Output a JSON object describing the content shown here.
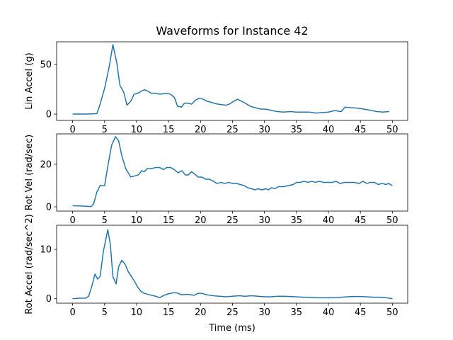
{
  "chart_data": [
    {
      "type": "line",
      "title": "Waveforms for Instance 42",
      "ylabel": "Lin Accel (g)",
      "xlim": [
        -2.5,
        52.4
      ],
      "ylim": [
        -6.4,
        72.9
      ],
      "xticks": [
        0,
        5,
        10,
        15,
        20,
        25,
        30,
        35,
        40,
        45,
        50
      ],
      "yticks": [
        0,
        50
      ],
      "series": [
        {
          "color": "#1f77b4",
          "x": [
            0,
            1,
            2,
            3,
            3.8,
            4.3,
            5,
            5.7,
            6.3,
            6.9,
            7.4,
            8,
            8.5,
            9.1,
            9.6,
            10.2,
            10.7,
            11.2,
            11.8,
            12.3,
            13,
            13.6,
            14.2,
            14.8,
            15.3,
            15.9,
            16.4,
            17,
            17.5,
            18,
            18.6,
            19.2,
            19.8,
            20.4,
            21,
            21.6,
            22.1,
            22.7,
            23.3,
            24,
            24.5,
            25.2,
            25.8,
            26.4,
            27,
            27.6,
            28.2,
            28.8,
            29.4,
            30,
            30.6,
            31.2,
            32,
            33,
            34,
            35,
            36,
            37,
            38,
            39,
            40,
            41,
            42,
            42.6,
            43.5,
            44.5,
            45.5,
            46.5,
            47.5,
            48.5,
            49.5
          ],
          "values": [
            0,
            0,
            0,
            0.2,
            0.5,
            10,
            26,
            47,
            70,
            52,
            29,
            22,
            9,
            13,
            20,
            21,
            23,
            24.5,
            23,
            21,
            21,
            20,
            20.5,
            21,
            20,
            17,
            8,
            7,
            11,
            11,
            10,
            14,
            16,
            15,
            13,
            12,
            11,
            10,
            9.5,
            9,
            10,
            13,
            15,
            13,
            11,
            8.5,
            7,
            6,
            5,
            5,
            4.5,
            3.5,
            2.5,
            2,
            2.5,
            2,
            2,
            2,
            1,
            1.5,
            2,
            3.5,
            2.5,
            7,
            6.5,
            6,
            5,
            4,
            2.5,
            2,
            2.5
          ]
        }
      ]
    },
    {
      "type": "line",
      "ylabel": "Rot Vel (rad/sec)",
      "xlim": [
        -2.5,
        52.4
      ],
      "ylim": [
        -2,
        34.3
      ],
      "xticks": [
        0,
        5,
        10,
        15,
        20,
        25,
        30,
        35,
        40,
        45,
        50
      ],
      "yticks": [
        0,
        20
      ],
      "series": [
        {
          "color": "#1f77b4",
          "x": [
            0,
            1,
            2,
            2.9,
            3.3,
            3.8,
            4.3,
            5,
            5.5,
            6.1,
            6.7,
            7.2,
            7.7,
            8.3,
            9.1,
            9.7,
            10.3,
            10.8,
            11.2,
            11.7,
            12.4,
            13,
            13.6,
            14.2,
            14.7,
            15.3,
            15.9,
            16.5,
            17.1,
            17.6,
            18.1,
            18.6,
            19.1,
            19.6,
            20.2,
            20.8,
            21.4,
            22,
            22.6,
            23.2,
            23.8,
            24.4,
            25,
            25.6,
            26.2,
            26.8,
            27.4,
            28,
            28.5,
            29,
            29.6,
            30.2,
            30.6,
            31.1,
            31.6,
            32.2,
            33,
            33.8,
            34.5,
            35,
            35.6,
            36.2,
            36.8,
            37.4,
            38,
            38.6,
            39.2,
            40,
            40.6,
            41.2,
            41.8,
            42.5,
            43.3,
            44,
            44.8,
            45.4,
            46,
            46.6,
            47.2,
            47.8,
            48.4,
            49,
            49.4,
            50
          ],
          "values": [
            0.5,
            0.4,
            0.3,
            0.1,
            1.5,
            7,
            10,
            10,
            19,
            29,
            33,
            31,
            24,
            18,
            14,
            14.5,
            15,
            17,
            16.5,
            18,
            18,
            18.5,
            18.5,
            17.5,
            18.5,
            18.5,
            17.5,
            16,
            17,
            15,
            15,
            16.5,
            15.5,
            14,
            14,
            13,
            13,
            12,
            11,
            11.5,
            11,
            11.5,
            11,
            11,
            10.5,
            10,
            9,
            8.5,
            8,
            8.5,
            8,
            8.5,
            8,
            9,
            8.5,
            9.5,
            9.5,
            10,
            10.5,
            11.5,
            11.5,
            12,
            11.5,
            12,
            11.5,
            12,
            11.5,
            11.5,
            11.5,
            12,
            11,
            11.5,
            11.5,
            11.5,
            11,
            12,
            11,
            11.5,
            11.5,
            10.5,
            11,
            10.5,
            11,
            10
          ]
        }
      ]
    },
    {
      "type": "line",
      "ylabel": "Rot Accel (rad/sec^2)",
      "xlabel": "Time (ms)",
      "xlim": [
        -2.5,
        52.4
      ],
      "ylim": [
        -0.9,
        14.9
      ],
      "xticks": [
        0,
        5,
        10,
        15,
        20,
        25,
        30,
        35,
        40,
        45,
        50
      ],
      "yticks": [
        0,
        10
      ],
      "series": [
        {
          "color": "#1f77b4",
          "x": [
            0,
            1,
            2,
            2.5,
            3,
            3.5,
            3.9,
            4.3,
            4.8,
            5.5,
            5.9,
            6.3,
            6.8,
            7.2,
            7.7,
            8.2,
            8.7,
            9.2,
            9.7,
            10.2,
            10.7,
            11.2,
            12,
            13,
            13.6,
            14.3,
            15,
            15.7,
            16.3,
            17,
            18,
            19,
            19.6,
            20.2,
            21,
            22,
            23,
            24,
            25,
            26,
            27,
            28,
            29,
            30,
            31,
            32,
            33,
            34,
            35,
            36,
            37,
            38,
            39,
            40,
            41,
            42,
            43,
            44,
            45,
            46,
            47,
            48,
            49,
            49.6,
            50
          ],
          "values": [
            0,
            0.1,
            0.1,
            0.5,
            2.5,
            5,
            4,
            4.5,
            9.5,
            14,
            11,
            4.5,
            3,
            6.5,
            7.8,
            7,
            5.5,
            4.5,
            3.5,
            2.3,
            1.5,
            1.1,
            0.8,
            0.5,
            0.2,
            0.7,
            1,
            1.2,
            1.2,
            0.8,
            0.9,
            0.7,
            1.1,
            1.1,
            0.8,
            0.6,
            0.5,
            0.4,
            0.5,
            0.6,
            0.5,
            0.6,
            0.5,
            0.4,
            0.4,
            0.5,
            0.5,
            0.45,
            0.4,
            0.3,
            0.3,
            0.2,
            0.2,
            0.2,
            0.2,
            0.3,
            0.4,
            0.45,
            0.45,
            0.4,
            0.3,
            0.3,
            0.2,
            0.1,
            0
          ]
        }
      ]
    }
  ]
}
